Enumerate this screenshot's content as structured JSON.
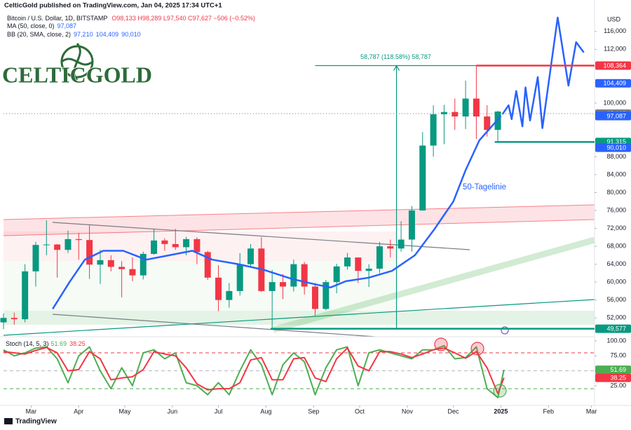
{
  "header": {
    "publisher": "CelticGold published on TradingView.com, Jan 04, 2025 17:34 UTC+1",
    "symbol": "Bitcoin / U.S. Dollar, 1D, BITSTAMP",
    "ohlc": "O98,133 H98,289 L97,540 C97,627 −506 (−0.52%)",
    "ma_name": "MA (50, close, 0)",
    "bb_name": "BB (20, SMA, close, 2)",
    "logo": "CELTICGOLD",
    "footer": "TradingView"
  },
  "chart_data": [
    {
      "type": "candlestick",
      "currency": "USD",
      "annotation": "50-Tagelinie",
      "x": [
        -18,
        -11,
        -4,
        3,
        10,
        17,
        24,
        31,
        38,
        45,
        52,
        59,
        66,
        73,
        80,
        87,
        94,
        101,
        108,
        115,
        122,
        129,
        136,
        143,
        150,
        157,
        164,
        171,
        178,
        185,
        192,
        199,
        206,
        213,
        220,
        227,
        234,
        241,
        248,
        255,
        262,
        269,
        276,
        283,
        290,
        297,
        304
      ],
      "open": [
        51000,
        52000,
        51700,
        62400,
        68300,
        68400,
        67200,
        69600,
        69400,
        63900,
        64900,
        63400,
        62900,
        61500,
        66300,
        69300,
        68500,
        67800,
        69600,
        66700,
        61000,
        56000,
        58000,
        64000,
        67500,
        58000,
        60000,
        59000,
        64000,
        59000,
        54000,
        60000,
        63500,
        65500,
        62500,
        63000,
        68000,
        67500,
        69500,
        76000,
        90500,
        97500,
        98000,
        97000,
        101000,
        97000,
        94000
      ],
      "high": [
        53000,
        53200,
        64000,
        69000,
        73800,
        68500,
        71500,
        71000,
        72700,
        67200,
        66000,
        64700,
        65500,
        66800,
        71900,
        69800,
        71900,
        70100,
        70000,
        67000,
        63800,
        59800,
        66500,
        68500,
        70000,
        62700,
        61800,
        65000,
        64500,
        59800,
        60500,
        64100,
        66500,
        65000,
        64000,
        69000,
        69500,
        73600,
        77000,
        93500,
        99500,
        99600,
        101000,
        105000,
        108300,
        99500,
        98300
      ],
      "low": [
        49500,
        50500,
        51000,
        59000,
        66000,
        61000,
        66500,
        65000,
        60700,
        59600,
        62400,
        56600,
        60200,
        60600,
        66100,
        67000,
        67200,
        66000,
        64000,
        60500,
        53500,
        54300,
        57000,
        63500,
        57800,
        49500,
        56200,
        57900,
        57200,
        52500,
        53700,
        57500,
        62800,
        59800,
        58900,
        62000,
        65500,
        66800,
        66800,
        76000,
        88000,
        90800,
        94000,
        94200,
        92000,
        92500,
        91300
      ],
      "close": [
        52000,
        51700,
        62400,
        68300,
        68400,
        67200,
        69600,
        69400,
        63900,
        64900,
        63400,
        62900,
        61500,
        66300,
        69300,
        68500,
        67800,
        69600,
        66700,
        61000,
        56000,
        58000,
        64000,
        67500,
        58000,
        60000,
        59000,
        64000,
        59000,
        54000,
        60000,
        63500,
        65500,
        62500,
        63000,
        68000,
        67500,
        69500,
        76000,
        90500,
        97500,
        98000,
        97000,
        101000,
        97000,
        94000,
        98100
      ],
      "up_color": "#089981",
      "down_color": "#f23645",
      "series": [
        {
          "name": "MA 50",
          "color": "#2962ff",
          "x": [
            14,
            25,
            35,
            47,
            60,
            75,
            90,
            105,
            118,
            135,
            152,
            170,
            185,
            195,
            205,
            220,
            235,
            250,
            262,
            275,
            283,
            292,
            306
          ],
          "values": [
            54000,
            60000,
            65000,
            67000,
            67000,
            65000,
            66000,
            67000,
            65000,
            64000,
            62700,
            60700,
            59500,
            58800,
            60200,
            61000,
            62500,
            66000,
            71500,
            78000,
            85000,
            91700,
            97087
          ]
        },
        {
          "name": "Forecast",
          "color": "#2962ff",
          "x": [
            307,
            311,
            313,
            316,
            320,
            322,
            325,
            330,
            333,
            343,
            350,
            355,
            360
          ],
          "values": [
            97500,
            99500,
            96400,
            102700,
            94800,
            103500,
            96100,
            105800,
            94400,
            119100,
            103900,
            113600,
            111300
          ]
        }
      ],
      "measured_move": {
        "x": 238,
        "from": 49577,
        "to": 108364,
        "top_from": 185,
        "top_to": 290,
        "label": "58,787 (118.58%) 58,787",
        "color": "#089981"
      },
      "price_tags": [
        {
          "value": 108364,
          "label": "108,364",
          "color": "#f23645",
          "line_from": 290
        },
        {
          "value": 104409,
          "label": "104,409",
          "color": "#2962ff"
        },
        {
          "value": 97627,
          "label": "97,627",
          "color": "#787b86",
          "line_from": -18
        },
        {
          "value": 97210,
          "label": "97,210",
          "color": "#2962ff"
        },
        {
          "value": 97087,
          "label": "97,087",
          "color": "#2962ff"
        },
        {
          "value": 91315,
          "label": "91,315",
          "color": "#089981",
          "line_from": 302
        },
        {
          "value": 90010,
          "label": "90,010",
          "color": "#2962ff"
        },
        {
          "value": 49577,
          "label": "49,577",
          "color": "#089981",
          "line_from": 156
        }
      ],
      "xlim": [
        -18,
        367
      ],
      "ylim": [
        47800,
        120200
      ],
      "yticks": [
        {
          "value": 52000,
          "label": "52,000"
        },
        {
          "value": 56000,
          "label": "56,000"
        },
        {
          "value": 60000,
          "label": "60,000"
        },
        {
          "value": 64000,
          "label": "64,000"
        },
        {
          "value": 68000,
          "label": "68,000"
        },
        {
          "value": 72000,
          "label": "72,000"
        },
        {
          "value": 76000,
          "label": "76,000"
        },
        {
          "value": 80000,
          "label": "80,000"
        },
        {
          "value": 84000,
          "label": "84,000"
        },
        {
          "value": 88000,
          "label": "88,000"
        },
        {
          "value": 100000,
          "label": "100,000"
        },
        {
          "value": 112000,
          "label": "112,000"
        },
        {
          "value": 116000,
          "label": "116,000"
        }
      ],
      "xticks": [
        {
          "value": 0,
          "label": "Mar"
        },
        {
          "value": 31,
          "label": "Apr"
        },
        {
          "value": 61,
          "label": "May"
        },
        {
          "value": 92,
          "label": "Jun"
        },
        {
          "value": 122,
          "label": "Jul"
        },
        {
          "value": 153,
          "label": "Aug"
        },
        {
          "value": 184,
          "label": "Sep"
        },
        {
          "value": 214,
          "label": "Oct"
        },
        {
          "value": 245,
          "label": "Nov"
        },
        {
          "value": 275,
          "label": "Dec"
        },
        {
          "value": 306,
          "label": "2025"
        },
        {
          "value": 337,
          "label": "Feb"
        },
        {
          "value": 365,
          "label": "Mar"
        }
      ],
      "grid": false
    },
    {
      "type": "line",
      "title": "Stoch (14, 5, 3)",
      "x": [
        -18,
        -11,
        -4,
        3,
        10,
        17,
        24,
        31,
        38,
        45,
        52,
        59,
        66,
        73,
        80,
        87,
        94,
        101,
        108,
        115,
        122,
        129,
        136,
        143,
        150,
        157,
        164,
        171,
        178,
        185,
        192,
        199,
        206,
        213,
        220,
        227,
        234,
        241,
        248,
        255,
        262,
        269,
        276,
        283,
        290,
        297,
        304,
        308
      ],
      "series": [
        {
          "name": "%K",
          "color": "#4caf50",
          "values": [
            85,
            75,
            80,
            88,
            90,
            70,
            30,
            75,
            90,
            50,
            20,
            55,
            25,
            80,
            85,
            70,
            80,
            30,
            25,
            10,
            30,
            10,
            50,
            85,
            60,
            10,
            60,
            80,
            65,
            10,
            55,
            85,
            90,
            25,
            80,
            85,
            80,
            75,
            70,
            85,
            85,
            92,
            70,
            72,
            90,
            20,
            5,
            51.69
          ]
        },
        {
          "name": "%D",
          "color": "#f23645",
          "values": [
            82,
            80,
            78,
            84,
            89,
            80,
            50,
            52,
            82,
            70,
            35,
            38,
            40,
            52,
            82,
            78,
            75,
            55,
            28,
            18,
            20,
            20,
            30,
            68,
            72,
            35,
            35,
            70,
            72,
            38,
            32,
            70,
            88,
            58,
            50,
            82,
            82,
            78,
            72,
            78,
            85,
            88,
            80,
            71,
            82,
            55,
            12,
            38.25
          ]
        }
      ],
      "levels": [
        {
          "value": 80,
          "color": "#f23645"
        },
        {
          "value": 50,
          "color": "#b2b5be"
        },
        {
          "value": 20,
          "color": "#4caf50"
        }
      ],
      "xlim": [
        -18,
        367
      ],
      "ylim": [
        -8,
        107
      ],
      "yticks": [
        {
          "value": 100,
          "label": "100.00"
        },
        {
          "value": 75,
          "label": "75.00"
        },
        {
          "value": 25,
          "label": "25.00"
        }
      ]
    }
  ]
}
